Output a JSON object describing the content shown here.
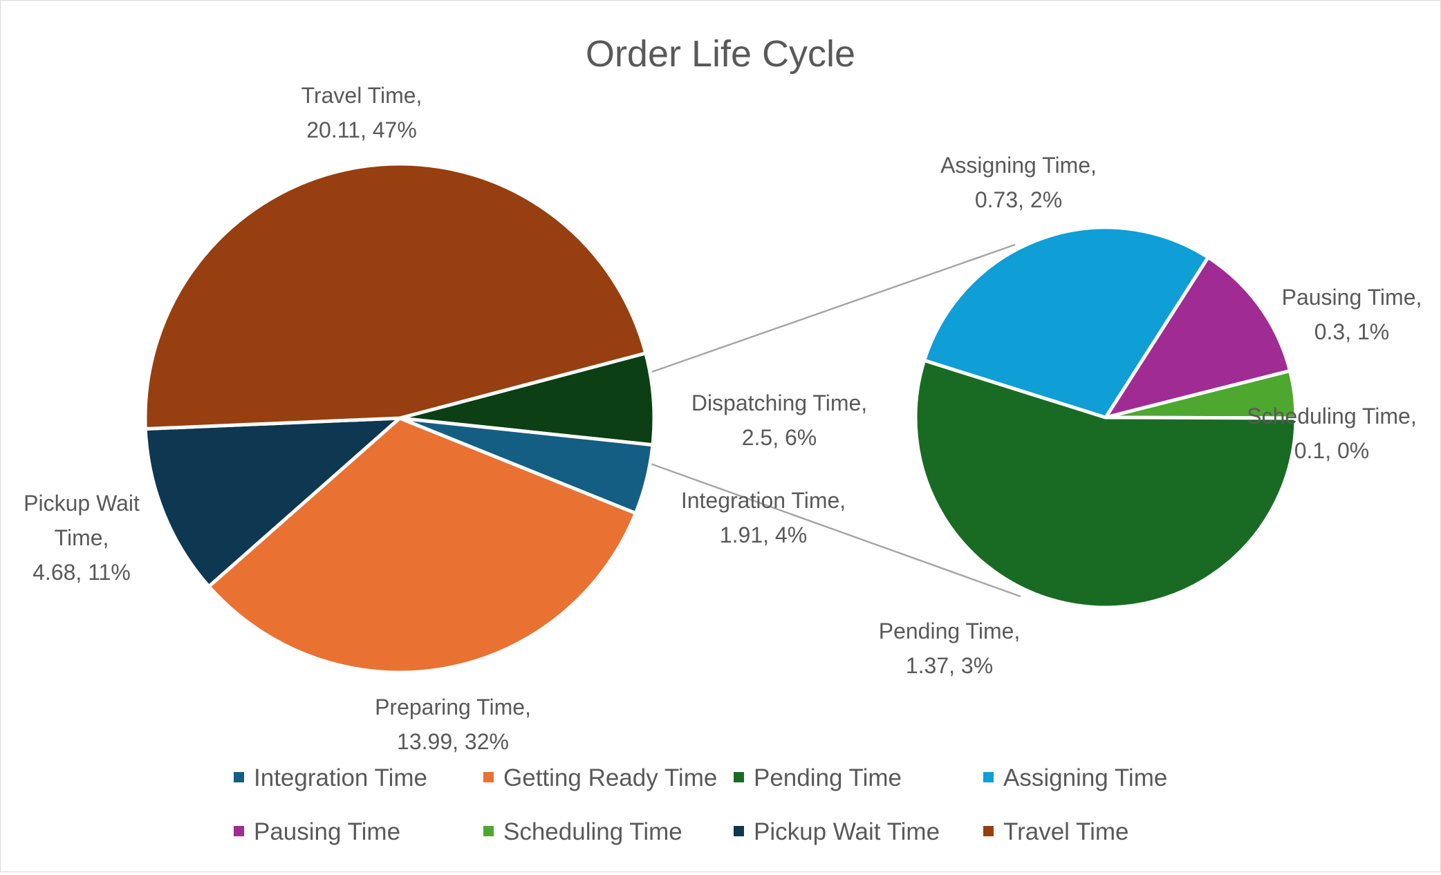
{
  "chart_data": {
    "type": "pie-of-pie",
    "title": "Order Life Cycle",
    "main_pie": {
      "slices": [
        {
          "key": "travel",
          "value": 20.11,
          "percent": "47%",
          "color": "#973F10",
          "label_lines": [
            "Travel Time,",
            "20.11, 47%"
          ]
        },
        {
          "key": "dispatching",
          "value": 2.5,
          "percent": "6%",
          "color": "#0D3F15",
          "label_lines": [
            "Dispatching Time,",
            "2.5, 6%"
          ]
        },
        {
          "key": "integration",
          "value": 1.91,
          "percent": "4%",
          "color": "#155E83",
          "label_lines": [
            "Integration Time,",
            "1.91, 4%"
          ]
        },
        {
          "key": "preparing",
          "value": 13.99,
          "percent": "32%",
          "color": "#E97132",
          "label_lines": [
            "Preparing Time,",
            "13.99, 32%"
          ]
        },
        {
          "key": "pickup",
          "value": 4.68,
          "percent": "11%",
          "color": "#0E3751",
          "label_lines": [
            "Pickup Wait",
            "Time,",
            "4.68, 11%"
          ]
        }
      ]
    },
    "secondary_pie": {
      "slices": [
        {
          "key": "pausing",
          "value": 0.3,
          "percent": "1%",
          "color": "#A02B93",
          "label_lines": [
            "Pausing Time,",
            "0.3, 1%"
          ]
        },
        {
          "key": "scheduling",
          "value": 0.1,
          "percent": "0%",
          "color": "#4EA72E",
          "label_lines": [
            "Scheduling Time,",
            "0.1, 0%"
          ]
        },
        {
          "key": "pending",
          "value": 1.37,
          "percent": "3%",
          "color": "#196B24",
          "label_lines": [
            "Pending Time,",
            "1.37, 3%"
          ]
        },
        {
          "key": "assigning",
          "value": 0.73,
          "percent": "2%",
          "color": "#0F9ED5",
          "label_lines": [
            "Assigning Time,",
            "0.73, 2%"
          ]
        }
      ]
    },
    "legend": [
      {
        "label": "Integration Time",
        "color": "#155E83"
      },
      {
        "label": "Getting Ready Time",
        "color": "#E97132"
      },
      {
        "label": "Pending Time",
        "color": "#196B24"
      },
      {
        "label": "Assigning Time",
        "color": "#0F9ED5"
      },
      {
        "label": "Pausing Time",
        "color": "#A02B93"
      },
      {
        "label": "Scheduling Time",
        "color": "#4EA72E"
      },
      {
        "label": "Pickup Wait Time",
        "color": "#0E3751"
      },
      {
        "label": "Travel Time",
        "color": "#973F10"
      }
    ],
    "legend_position": "bottom",
    "connector_color": "#A6A6A6"
  }
}
